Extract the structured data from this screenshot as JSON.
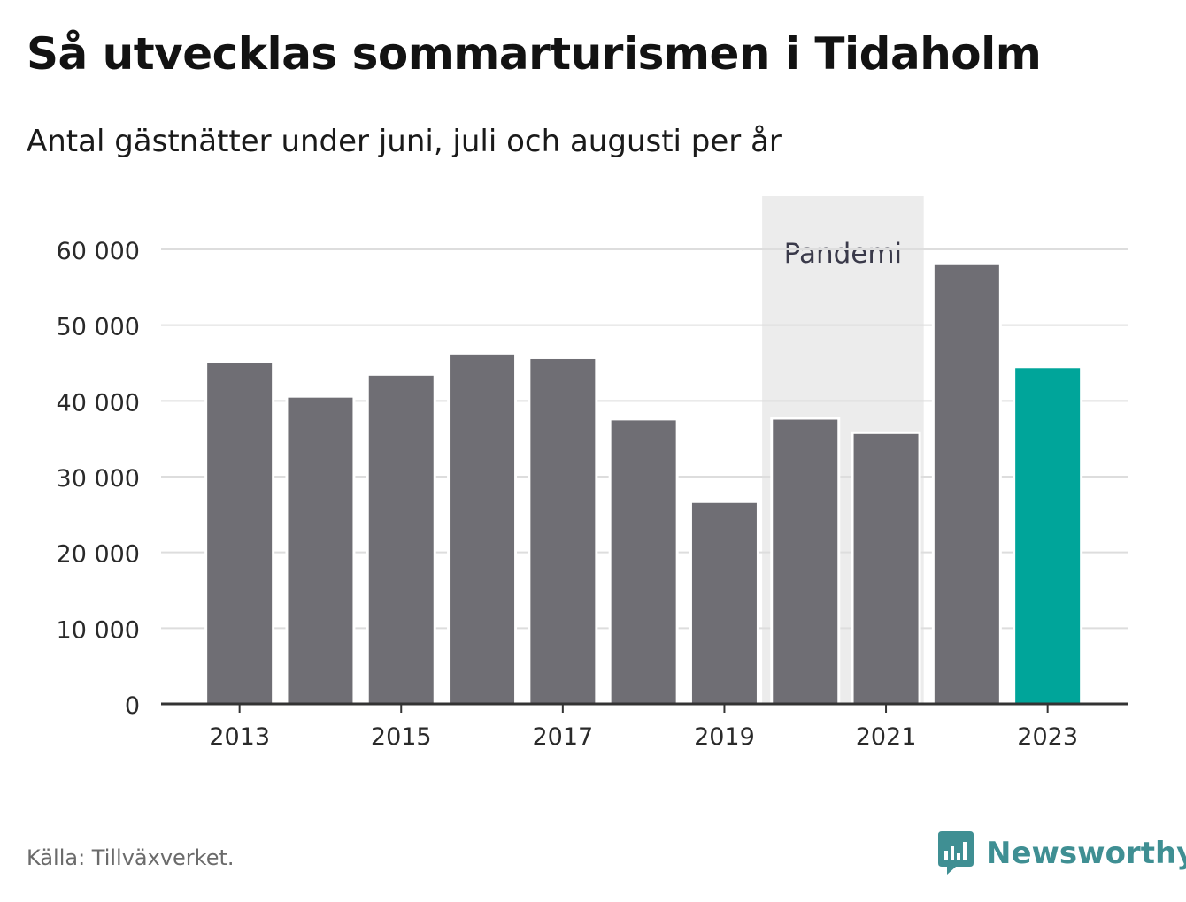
{
  "title": "Så utvecklas sommarturismen i Tidaholm",
  "subtitle": "Antal gästnätter under juni, juli och augusti per år",
  "source": "Källa: Tillväxverket.",
  "brand": {
    "name": "Newsworthy",
    "icon": "newsworthy-logo-icon",
    "color": "#3f8f93"
  },
  "colors": {
    "bar": "#6f6e74",
    "highlight": "#00a59a",
    "grid": "#dddddd",
    "axis": "#333333",
    "shade": "#ececec",
    "tick_text": "#2a2a2a",
    "shade_text": "#3a3a4a"
  },
  "chart_data": {
    "type": "bar",
    "categories": [
      "2013",
      "2014",
      "2015",
      "2016",
      "2017",
      "2018",
      "2019",
      "2020",
      "2021",
      "2022",
      "2023"
    ],
    "values": [
      45200,
      40600,
      43500,
      46300,
      45700,
      37600,
      26700,
      37700,
      35800,
      58100,
      44500
    ],
    "highlight_category": "2023",
    "x_tick_labels": [
      "2013",
      "2015",
      "2017",
      "2019",
      "2021",
      "2023"
    ],
    "y_ticks": [
      0,
      10000,
      20000,
      30000,
      40000,
      50000,
      60000
    ],
    "y_tick_labels": [
      "0",
      "10 000",
      "20 000",
      "30 000",
      "40 000",
      "50 000",
      "60 000"
    ],
    "ylim": [
      0,
      67000
    ],
    "grid": true,
    "xlabel": "",
    "ylabel": "",
    "annotations": [
      {
        "type": "shaded_range",
        "label": "Pandemi",
        "from": "2020",
        "to": "2021"
      }
    ]
  }
}
